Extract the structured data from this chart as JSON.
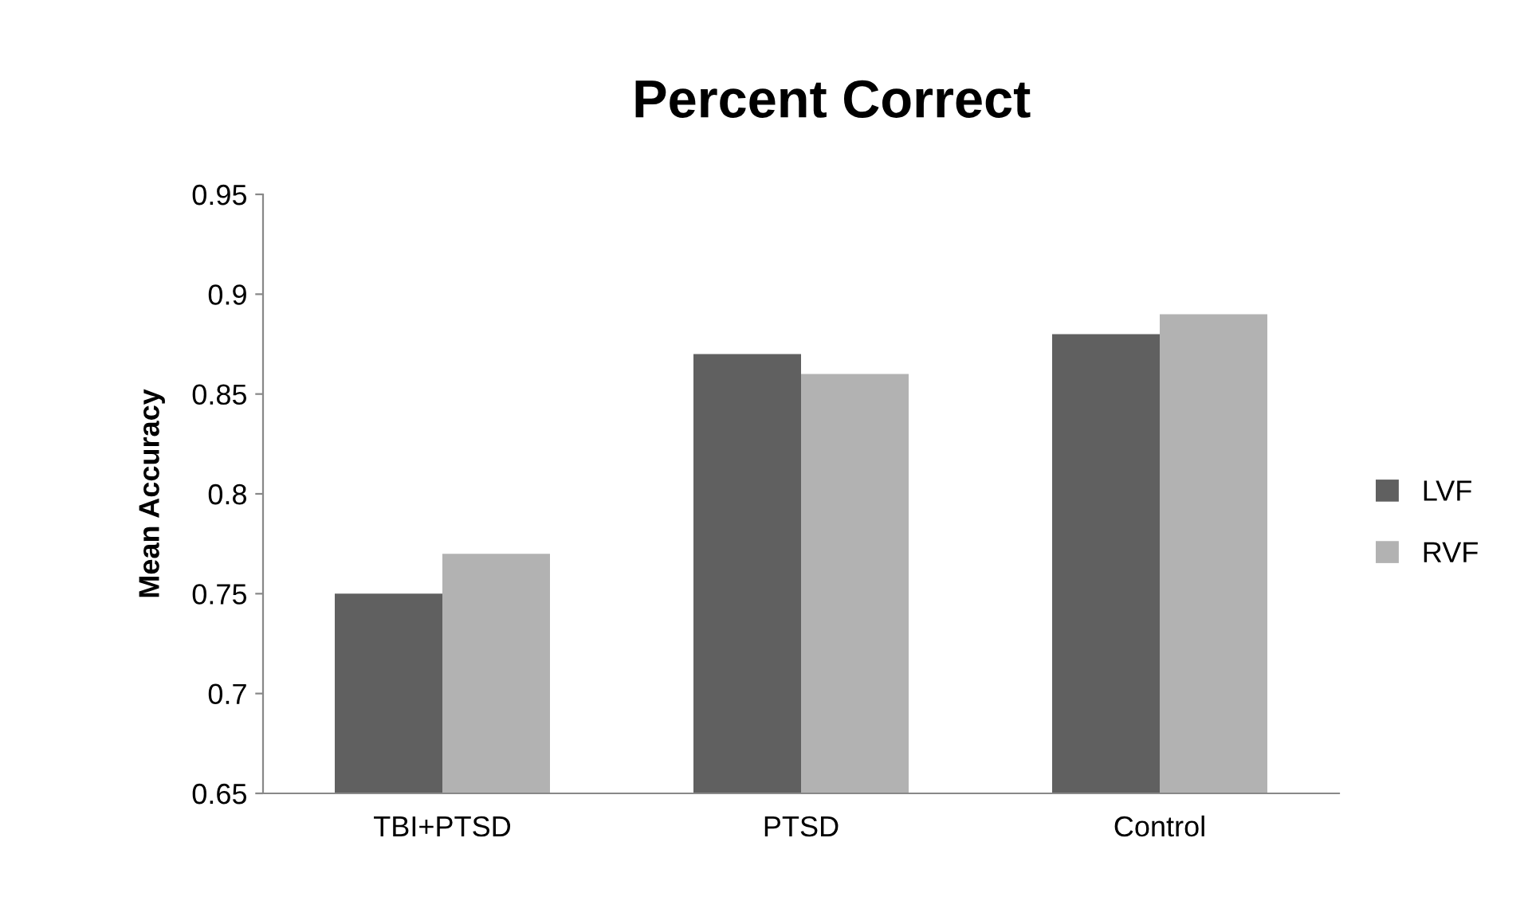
{
  "chart_data": {
    "type": "bar",
    "title": "Percent Correct",
    "ylabel": "Mean Accuracy",
    "categories": [
      "TBI+PTSD",
      "PTSD",
      "Control"
    ],
    "series": [
      {
        "name": "LVF",
        "color": "#606060",
        "values": [
          0.75,
          0.87,
          0.88
        ]
      },
      {
        "name": "RVF",
        "color": "#b2b2b2",
        "values": [
          0.77,
          0.86,
          0.89
        ]
      }
    ],
    "ylim": [
      0.65,
      0.95
    ],
    "yticks": [
      0.65,
      0.7,
      0.75,
      0.8,
      0.85,
      0.9,
      0.95
    ],
    "grid": false,
    "legend": "right"
  }
}
